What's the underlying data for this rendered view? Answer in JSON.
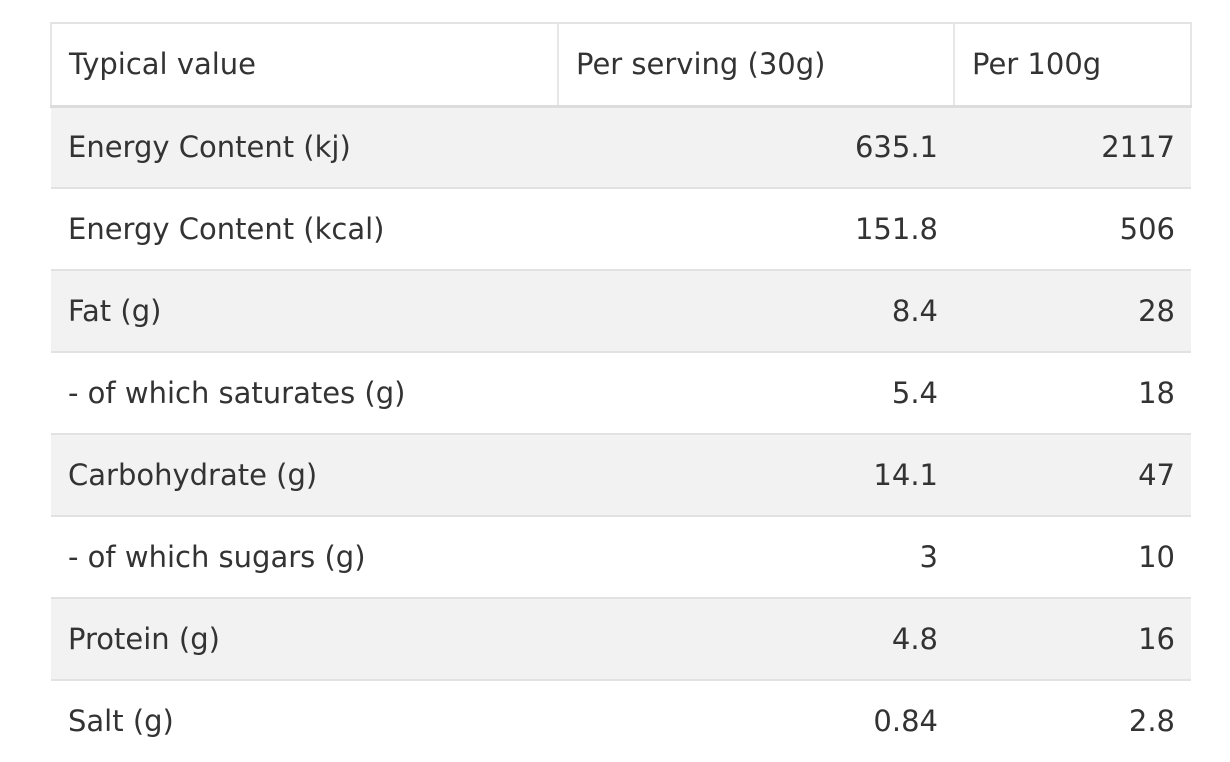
{
  "table": {
    "headers": [
      "Typical value",
      "Per serving (30g)",
      "Per 100g"
    ],
    "rows": [
      {
        "label": "Energy Content (kj)",
        "per_serving": "635.1",
        "per_100g": "2117"
      },
      {
        "label": "Energy Content (kcal)",
        "per_serving": "151.8",
        "per_100g": "506"
      },
      {
        "label": "Fat (g)",
        "per_serving": "8.4",
        "per_100g": "28"
      },
      {
        "label": "- of which saturates (g)",
        "per_serving": "5.4",
        "per_100g": "18"
      },
      {
        "label": "Carbohydrate (g)",
        "per_serving": "14.1",
        "per_100g": "47"
      },
      {
        "label": "- of which sugars (g)",
        "per_serving": "3",
        "per_100g": "10"
      },
      {
        "label": "Protein (g)",
        "per_serving": "4.8",
        "per_100g": "16"
      },
      {
        "label": "Salt (g)",
        "per_serving": "0.84",
        "per_100g": "2.8"
      }
    ]
  }
}
